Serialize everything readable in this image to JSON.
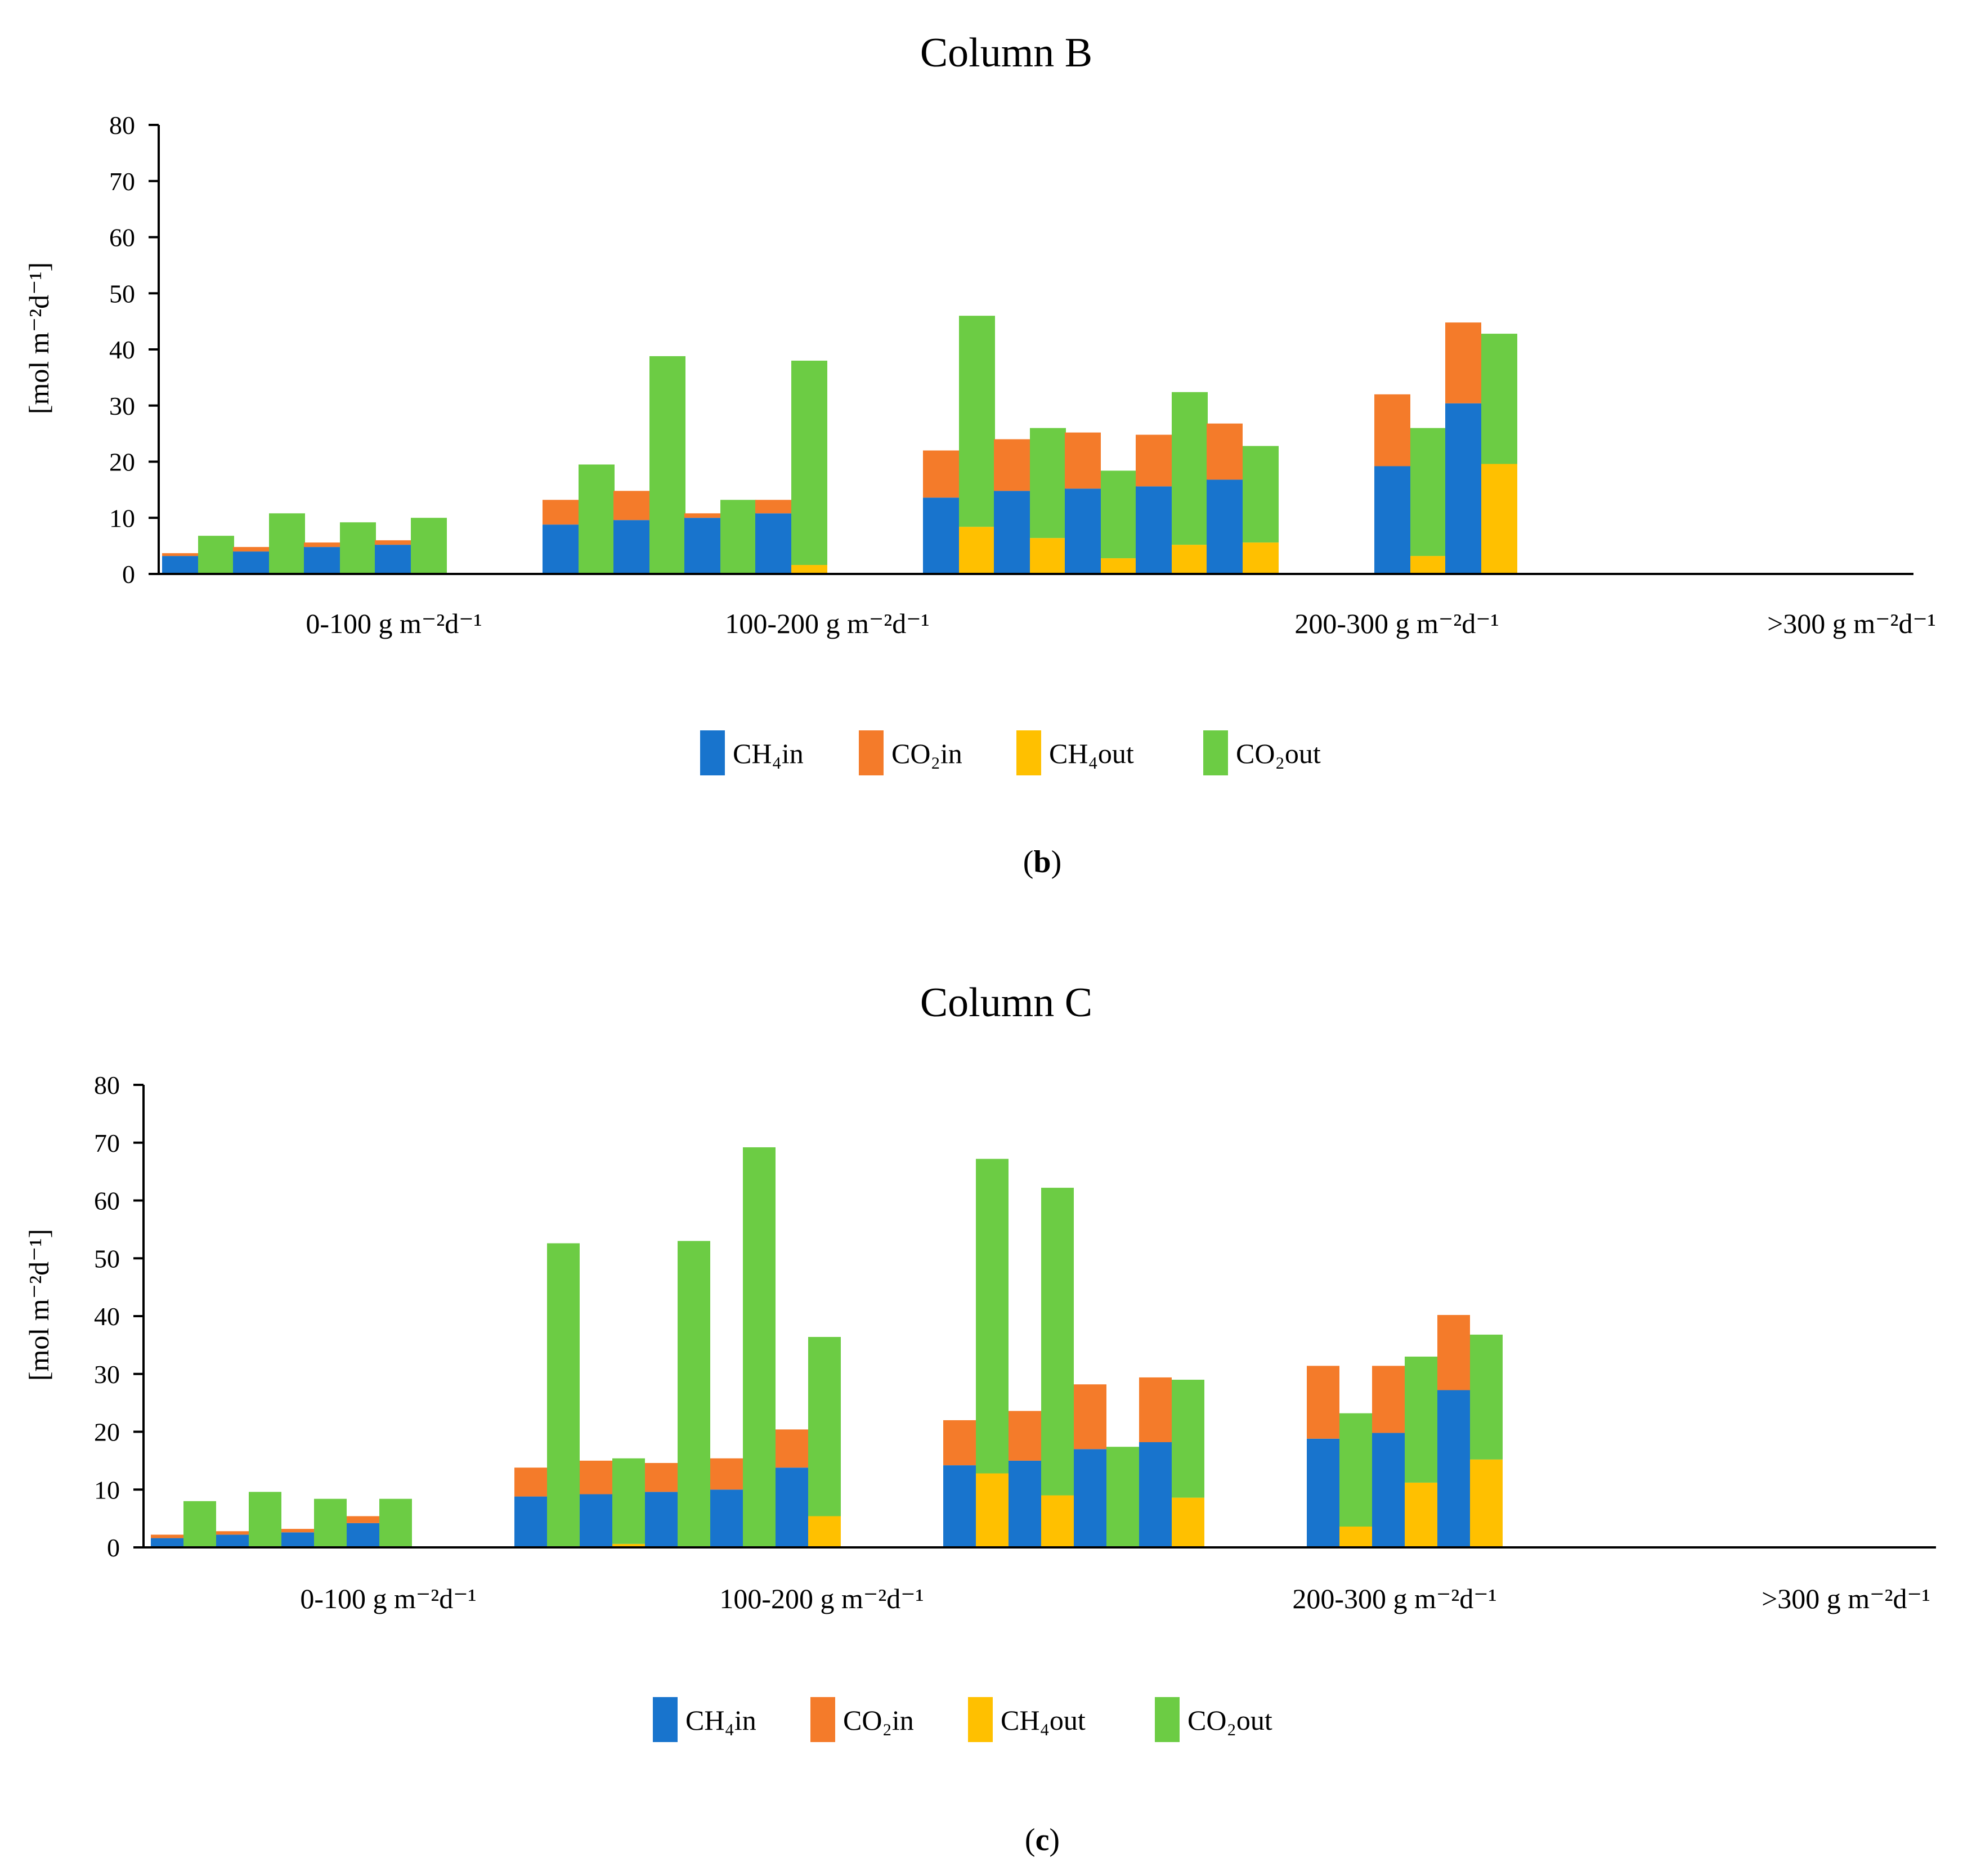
{
  "colors": {
    "ch4_in": "#1874CD",
    "co2_in": "#F47B2A",
    "ch4_out": "#FFC000",
    "co2_out": "#6CCC44",
    "axis": "#000000"
  },
  "chart_data": [
    {
      "id": "b",
      "type": "bar",
      "stacked": true,
      "title": "Column B",
      "caption_prefix": "(",
      "caption_letter": "b",
      "caption_suffix": ")",
      "ylabel": "[mol m⁻²d⁻¹]",
      "ylim": [
        0,
        80
      ],
      "yticks": [
        "0",
        "10",
        "20",
        "30",
        "40",
        "50",
        "60",
        "70",
        "80"
      ],
      "legend": [
        {
          "key": "ch4_in",
          "label": "CH₄in"
        },
        {
          "key": "co2_in",
          "label": "CO₂in"
        },
        {
          "key": "ch4_out",
          "label": "CH₄out"
        },
        {
          "key": "co2_out",
          "label": "CO₂out"
        }
      ],
      "groups": [
        {
          "label": "0-100 g m⁻²d⁻¹",
          "samples": [
            {
              "ch4_in": 3.2,
              "co2_in": 0.5,
              "ch4_out": 0,
              "co2_out": 6.8
            },
            {
              "ch4_in": 4.0,
              "co2_in": 0.8,
              "ch4_out": 0,
              "co2_out": 10.8
            },
            {
              "ch4_in": 4.8,
              "co2_in": 0.8,
              "ch4_out": 0,
              "co2_out": 9.2
            },
            {
              "ch4_in": 5.2,
              "co2_in": 0.8,
              "ch4_out": 0,
              "co2_out": 10.0
            }
          ]
        },
        {
          "label": "100-200 g m⁻²d⁻¹",
          "samples": [
            {
              "ch4_in": 8.8,
              "co2_in": 4.4,
              "ch4_out": 0,
              "co2_out": 19.5
            },
            {
              "ch4_in": 9.6,
              "co2_in": 5.2,
              "ch4_out": 0,
              "co2_out": 38.8
            },
            {
              "ch4_in": 10.0,
              "co2_in": 0.8,
              "ch4_out": 0,
              "co2_out": 13.2
            },
            {
              "ch4_in": 10.8,
              "co2_in": 2.4,
              "ch4_out": 1.6,
              "co2_out": 36.4
            }
          ]
        },
        {
          "label": "200-300 g m⁻²d⁻¹",
          "samples": [
            {
              "ch4_in": 13.6,
              "co2_in": 8.4,
              "ch4_out": 8.4,
              "co2_out": 37.6
            },
            {
              "ch4_in": 14.8,
              "co2_in": 9.2,
              "ch4_out": 6.4,
              "co2_out": 19.6
            },
            {
              "ch4_in": 15.2,
              "co2_in": 10.0,
              "ch4_out": 2.8,
              "co2_out": 15.6
            },
            {
              "ch4_in": 15.6,
              "co2_in": 9.2,
              "ch4_out": 5.2,
              "co2_out": 27.2
            },
            {
              "ch4_in": 16.8,
              "co2_in": 10.0,
              "ch4_out": 5.6,
              "co2_out": 17.2
            }
          ]
        },
        {
          "label": ">300 g m⁻²d⁻¹",
          "samples": [
            {
              "ch4_in": 19.2,
              "co2_in": 12.8,
              "ch4_out": 3.2,
              "co2_out": 22.8
            },
            {
              "ch4_in": 30.4,
              "co2_in": 14.4,
              "ch4_out": 19.6,
              "co2_out": 23.2
            }
          ]
        }
      ]
    },
    {
      "id": "c",
      "type": "bar",
      "stacked": true,
      "title": "Column C",
      "caption_prefix": "(",
      "caption_letter": "c",
      "caption_suffix": ")",
      "ylabel": "[mol m⁻²d⁻¹]",
      "ylim": [
        0,
        80
      ],
      "yticks": [
        "0",
        "10",
        "20",
        "30",
        "40",
        "50",
        "60",
        "70",
        "80"
      ],
      "legend": [
        {
          "key": "ch4_in",
          "label": "CH₄in"
        },
        {
          "key": "co2_in",
          "label": "CO₂in"
        },
        {
          "key": "ch4_out",
          "label": "CH₄out"
        },
        {
          "key": "co2_out",
          "label": "CO₂out"
        }
      ],
      "groups": [
        {
          "label": "0-100 g m⁻²d⁻¹",
          "samples": [
            {
              "ch4_in": 1.6,
              "co2_in": 0.6,
              "ch4_out": 0,
              "co2_out": 8.0
            },
            {
              "ch4_in": 2.2,
              "co2_in": 0.6,
              "ch4_out": 0,
              "co2_out": 9.6
            },
            {
              "ch4_in": 2.6,
              "co2_in": 0.6,
              "ch4_out": 0,
              "co2_out": 8.4
            },
            {
              "ch4_in": 4.2,
              "co2_in": 1.2,
              "ch4_out": 0,
              "co2_out": 8.4
            }
          ]
        },
        {
          "label": "100-200 g m⁻²d⁻¹",
          "samples": [
            {
              "ch4_in": 8.8,
              "co2_in": 5.0,
              "ch4_out": 0,
              "co2_out": 52.6
            },
            {
              "ch4_in": 9.2,
              "co2_in": 5.8,
              "ch4_out": 0.6,
              "co2_out": 14.8
            },
            {
              "ch4_in": 9.6,
              "co2_in": 5.0,
              "ch4_out": 0,
              "co2_out": 53.0
            },
            {
              "ch4_in": 10.0,
              "co2_in": 5.4,
              "ch4_out": 0,
              "co2_out": 69.2
            },
            {
              "ch4_in": 13.8,
              "co2_in": 6.6,
              "ch4_out": 5.4,
              "co2_out": 31.0
            }
          ]
        },
        {
          "label": "200-300 g m⁻²d⁻¹",
          "samples": [
            {
              "ch4_in": 14.2,
              "co2_in": 7.8,
              "ch4_out": 12.8,
              "co2_out": 54.4
            },
            {
              "ch4_in": 15.0,
              "co2_in": 8.6,
              "ch4_out": 9.0,
              "co2_out": 53.2
            },
            {
              "ch4_in": 17.0,
              "co2_in": 11.2,
              "ch4_out": 0,
              "co2_out": 17.4
            },
            {
              "ch4_in": 18.2,
              "co2_in": 11.2,
              "ch4_out": 8.6,
              "co2_out": 20.4
            }
          ]
        },
        {
          "label": ">300 g m⁻²d⁻¹",
          "samples": [
            {
              "ch4_in": 18.8,
              "co2_in": 12.6,
              "ch4_out": 3.6,
              "co2_out": 19.6
            },
            {
              "ch4_in": 19.8,
              "co2_in": 11.6,
              "ch4_out": 11.2,
              "co2_out": 21.8
            },
            {
              "ch4_in": 27.2,
              "co2_in": 13.0,
              "ch4_out": 15.2,
              "co2_out": 21.6
            }
          ]
        }
      ]
    }
  ]
}
